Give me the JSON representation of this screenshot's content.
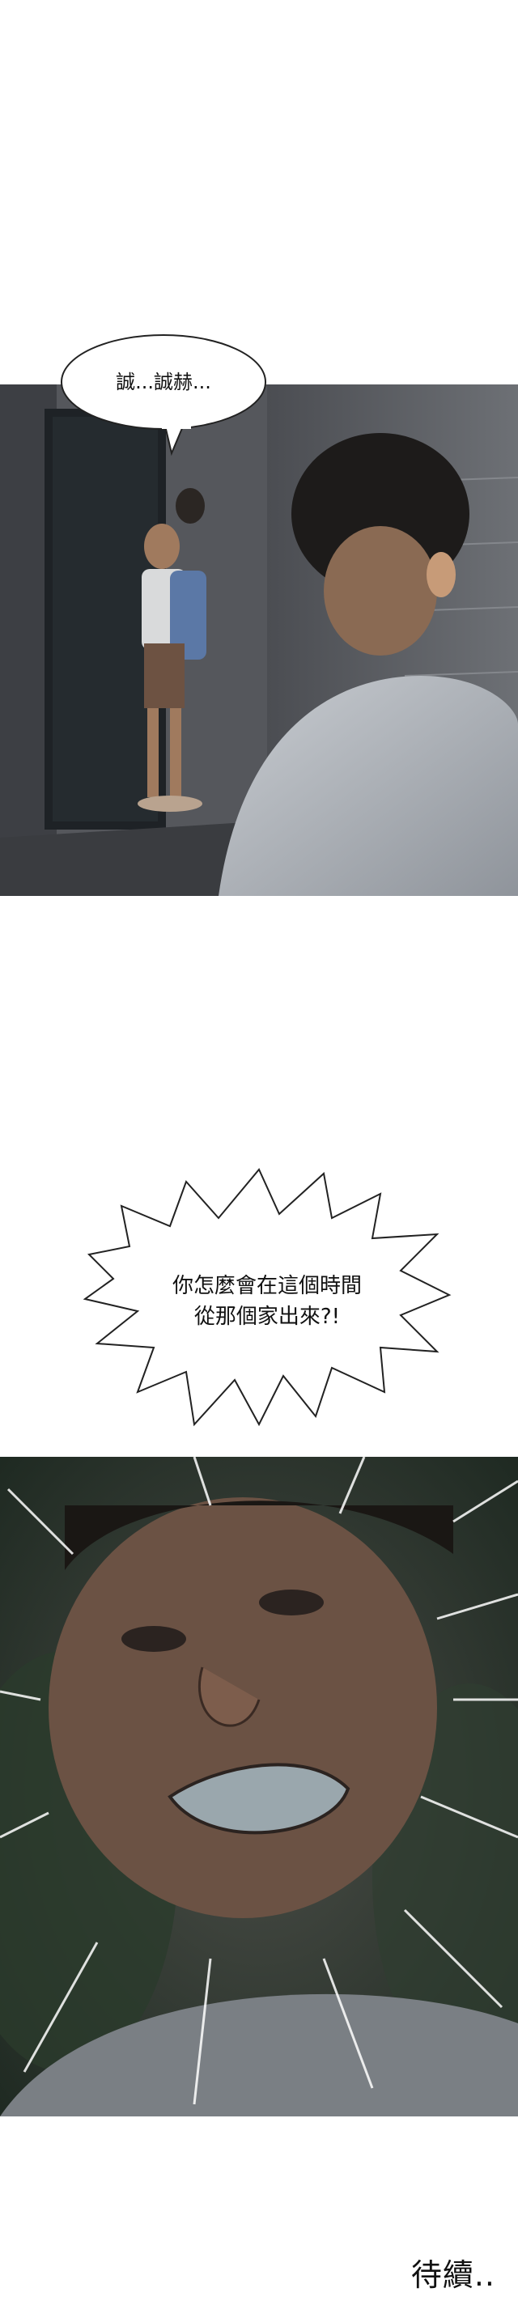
{
  "panels": [
    {
      "id": "alley-scene",
      "speech": "誠...誠赫..."
    },
    {
      "id": "shout-scene",
      "speech_lines": [
        "你怎麼會在這個時間",
        "從那個家出來?!"
      ]
    }
  ],
  "ending": "待續.."
}
